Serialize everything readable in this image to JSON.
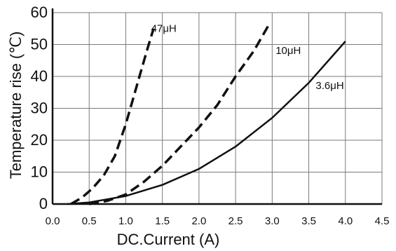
{
  "chart_data": {
    "type": "line",
    "title": "",
    "xlabel": "DC.Current (A)",
    "ylabel": "Temperature rise (℃)",
    "xlim": [
      0.0,
      4.5
    ],
    "ylim": [
      0,
      60
    ],
    "xticks": [
      "0.0",
      "0.5",
      "1.0",
      "1.5",
      "2.0",
      "2.5",
      "3.0",
      "3.5",
      "4.0",
      "4.5"
    ],
    "yticks": [
      "0",
      "10",
      "20",
      "30",
      "40",
      "50",
      "60"
    ],
    "grid": true,
    "series": [
      {
        "name": "47μH",
        "style": "dashed",
        "x": [
          0.25,
          0.4,
          0.55,
          0.7,
          0.85,
          1.0,
          1.1,
          1.2,
          1.3,
          1.38
        ],
        "y": [
          0,
          2,
          5,
          9,
          15,
          25,
          33,
          41,
          49,
          55
        ]
      },
      {
        "name": "10μH",
        "style": "dashed",
        "x": [
          0.5,
          0.75,
          1.0,
          1.25,
          1.5,
          1.75,
          2.0,
          2.25,
          2.5,
          2.75,
          2.95
        ],
        "y": [
          0,
          1,
          3,
          7,
          12,
          18,
          24,
          31,
          40,
          48,
          56
        ]
      },
      {
        "name": "3.6μH",
        "style": "solid",
        "x": [
          0.2,
          0.5,
          1.0,
          1.5,
          2.0,
          2.5,
          3.0,
          3.5,
          4.0
        ],
        "y": [
          0,
          0.5,
          2.5,
          6,
          11,
          18,
          27,
          38,
          51
        ]
      }
    ]
  }
}
